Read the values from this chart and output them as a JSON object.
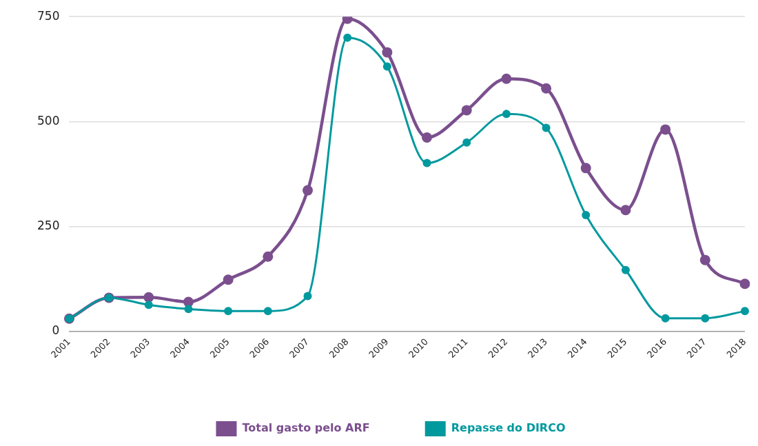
{
  "chart_data": {
    "type": "line",
    "categories": [
      "2001",
      "2002",
      "2003",
      "2004",
      "2005",
      "2006",
      "2007",
      "2008",
      "2009",
      "2010",
      "2011",
      "2012",
      "2013",
      "2014",
      "2015",
      "2016",
      "2017",
      "2018"
    ],
    "series": [
      {
        "name": "Total gasto pelo ARF",
        "color": "#7b4f8e",
        "values": [
          30,
          80,
          81,
          70,
          123,
          178,
          336,
          745,
          665,
          462,
          527,
          602,
          579,
          389,
          289,
          481,
          170,
          113
        ]
      },
      {
        "name": "Repasse do DIRCO",
        "color": "#00999e",
        "values": [
          30,
          80,
          63,
          53,
          48,
          48,
          84,
          700,
          631,
          401,
          450,
          518,
          485,
          277,
          146,
          31,
          31,
          48
        ]
      }
    ],
    "ylim": [
      0,
      750
    ],
    "yticks": [
      0,
      250,
      500,
      750
    ],
    "grid": "y",
    "legend": "bottom",
    "marker": "circle",
    "line_style": "solid"
  }
}
